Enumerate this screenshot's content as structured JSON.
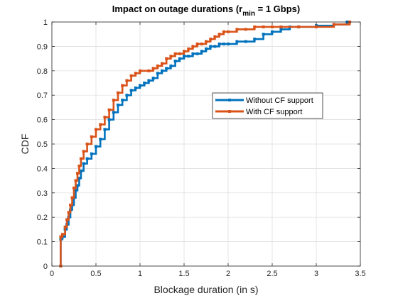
{
  "chart_data": {
    "type": "line",
    "title_main": "Impact on outage durations (r",
    "title_sub": "min",
    "title_tail": " = 1 Gbps)",
    "xlabel": "Blockage duration (in s)",
    "ylabel": "CDF",
    "xlim": [
      0,
      3.5
    ],
    "ylim": [
      0,
      1
    ],
    "xticks": [
      "0",
      "0.5",
      "1",
      "1.5",
      "2",
      "2.5",
      "3",
      "3.5"
    ],
    "yticks": [
      "0",
      "0.1",
      "0.2",
      "0.3",
      "0.4",
      "0.5",
      "0.6",
      "0.7",
      "0.8",
      "0.9",
      "1"
    ],
    "grid": true,
    "legend_position": "center-right",
    "series": [
      {
        "name": "Without CF support",
        "color": "#0072BD",
        "x": [
          0.1,
          0.1,
          0.12,
          0.15,
          0.17,
          0.19,
          0.21,
          0.23,
          0.25,
          0.27,
          0.29,
          0.31,
          0.33,
          0.36,
          0.4,
          0.45,
          0.5,
          0.55,
          0.6,
          0.65,
          0.7,
          0.75,
          0.8,
          0.85,
          0.9,
          0.95,
          1.0,
          1.05,
          1.1,
          1.15,
          1.2,
          1.25,
          1.3,
          1.35,
          1.4,
          1.45,
          1.5,
          1.55,
          1.6,
          1.65,
          1.7,
          1.75,
          1.8,
          1.85,
          1.9,
          1.95,
          2.0,
          2.1,
          2.2,
          2.3,
          2.4,
          2.5,
          2.6,
          2.7,
          2.8,
          3.0,
          3.2,
          3.35
        ],
        "y": [
          0.0,
          0.11,
          0.12,
          0.15,
          0.17,
          0.2,
          0.23,
          0.25,
          0.28,
          0.31,
          0.33,
          0.36,
          0.39,
          0.42,
          0.44,
          0.46,
          0.49,
          0.52,
          0.56,
          0.6,
          0.63,
          0.66,
          0.68,
          0.7,
          0.72,
          0.73,
          0.74,
          0.75,
          0.76,
          0.77,
          0.79,
          0.8,
          0.81,
          0.82,
          0.84,
          0.85,
          0.86,
          0.86,
          0.87,
          0.87,
          0.88,
          0.89,
          0.9,
          0.9,
          0.91,
          0.91,
          0.91,
          0.92,
          0.92,
          0.93,
          0.95,
          0.96,
          0.97,
          0.98,
          0.98,
          0.985,
          0.99,
          1.0
        ]
      },
      {
        "name": "With CF support",
        "color": "#D95319",
        "x": [
          0.1,
          0.1,
          0.12,
          0.15,
          0.17,
          0.19,
          0.21,
          0.23,
          0.25,
          0.27,
          0.29,
          0.31,
          0.33,
          0.36,
          0.4,
          0.45,
          0.5,
          0.55,
          0.6,
          0.65,
          0.7,
          0.75,
          0.8,
          0.85,
          0.9,
          0.95,
          1.0,
          1.1,
          1.15,
          1.2,
          1.25,
          1.3,
          1.35,
          1.4,
          1.45,
          1.5,
          1.55,
          1.6,
          1.65,
          1.7,
          1.75,
          1.8,
          1.85,
          1.9,
          1.95,
          2.0,
          2.1,
          2.2,
          2.3,
          2.4,
          2.5,
          2.6,
          2.8,
          3.0,
          3.2,
          3.38
        ],
        "y": [
          0.0,
          0.12,
          0.13,
          0.16,
          0.19,
          0.22,
          0.25,
          0.28,
          0.32,
          0.35,
          0.38,
          0.41,
          0.44,
          0.47,
          0.5,
          0.53,
          0.56,
          0.58,
          0.61,
          0.64,
          0.68,
          0.71,
          0.74,
          0.76,
          0.78,
          0.79,
          0.8,
          0.8,
          0.81,
          0.82,
          0.83,
          0.85,
          0.86,
          0.87,
          0.87,
          0.88,
          0.89,
          0.9,
          0.91,
          0.91,
          0.92,
          0.93,
          0.94,
          0.95,
          0.96,
          0.96,
          0.97,
          0.97,
          0.98,
          0.98,
          0.98,
          0.98,
          0.98,
          0.98,
          0.99,
          1.0
        ]
      }
    ]
  }
}
